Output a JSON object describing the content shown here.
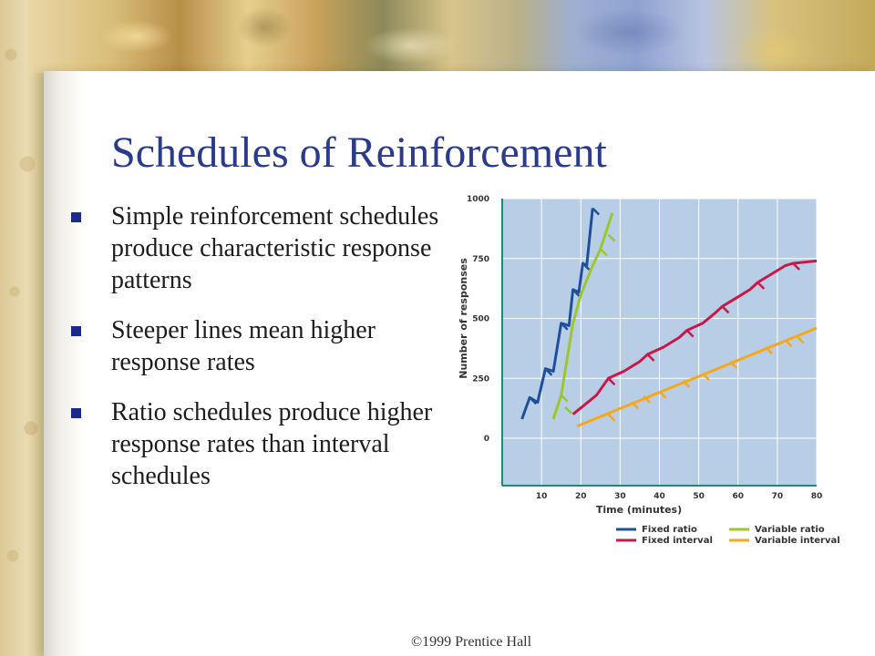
{
  "slide": {
    "title": "Schedules of Reinforcement",
    "bullets": [
      "Simple reinforcement schedules produce characteristic response patterns",
      "Steeper lines mean higher response rates",
      "Ratio schedules produce higher response rates than interval schedules"
    ],
    "footer": "©1999 Prentice Hall"
  },
  "chart_data": {
    "type": "line",
    "xlabel": "Time (minutes)",
    "ylabel": "Number of responses",
    "xlim": [
      0,
      80
    ],
    "ylim": [
      0,
      1000
    ],
    "x_ticks": [
      10,
      20,
      30,
      40,
      50,
      60,
      70,
      80
    ],
    "y_ticks": [
      0,
      250,
      500,
      750,
      1000
    ],
    "grid": true,
    "legend_position": "bottom-right",
    "colors": {
      "plot_bg": "#b8cee6",
      "grid": "#ffffff",
      "axis": "#1d8a82"
    },
    "series": [
      {
        "name": "Fixed ratio",
        "color": "#1f4f9c",
        "points": [
          [
            5,
            80
          ],
          [
            7,
            170
          ],
          [
            9,
            150
          ],
          [
            11,
            290
          ],
          [
            13,
            280
          ],
          [
            15,
            480
          ],
          [
            17,
            470
          ],
          [
            18,
            620
          ],
          [
            19.5,
            610
          ],
          [
            20.5,
            730
          ],
          [
            21.5,
            720
          ],
          [
            23,
            960
          ]
        ],
        "reinforcements": [
          [
            7,
            170
          ],
          [
            11,
            290
          ],
          [
            15,
            480
          ],
          [
            18,
            620
          ],
          [
            20.5,
            730
          ],
          [
            23,
            960
          ]
        ]
      },
      {
        "name": "Variable ratio",
        "color": "#9cc62d",
        "points": [
          [
            13,
            80
          ],
          [
            15,
            180
          ],
          [
            18,
            480
          ],
          [
            20,
            600
          ],
          [
            23,
            720
          ],
          [
            25,
            790
          ],
          [
            28,
            940
          ]
        ],
        "reinforcements": [
          [
            15,
            180
          ],
          [
            16,
            130
          ],
          [
            25,
            790
          ],
          [
            27,
            850
          ]
        ]
      },
      {
        "name": "Fixed interval",
        "color": "#c8184a",
        "points": [
          [
            18,
            100
          ],
          [
            24,
            180
          ],
          [
            27,
            250
          ],
          [
            31,
            280
          ],
          [
            35,
            320
          ],
          [
            37,
            350
          ],
          [
            41,
            380
          ],
          [
            45,
            420
          ],
          [
            47,
            450
          ],
          [
            51,
            480
          ],
          [
            54,
            520
          ],
          [
            56,
            550
          ],
          [
            60,
            590
          ],
          [
            63,
            620
          ],
          [
            65,
            650
          ],
          [
            69,
            690
          ],
          [
            72,
            720
          ],
          [
            74,
            730
          ],
          [
            80,
            740
          ]
        ],
        "reinforcements": [
          [
            27,
            250
          ],
          [
            37,
            350
          ],
          [
            47,
            450
          ],
          [
            56,
            550
          ],
          [
            65,
            650
          ],
          [
            74,
            730
          ]
        ]
      },
      {
        "name": "Variable interval",
        "color": "#f5a81c",
        "points": [
          [
            19,
            50
          ],
          [
            80,
            460
          ]
        ],
        "reinforcements": [
          [
            27,
            100
          ],
          [
            33,
            150
          ],
          [
            36,
            175
          ],
          [
            40,
            195
          ],
          [
            46,
            240
          ],
          [
            51,
            270
          ],
          [
            58,
            320
          ],
          [
            67,
            380
          ],
          [
            72,
            410
          ],
          [
            75,
            425
          ]
        ]
      }
    ]
  }
}
